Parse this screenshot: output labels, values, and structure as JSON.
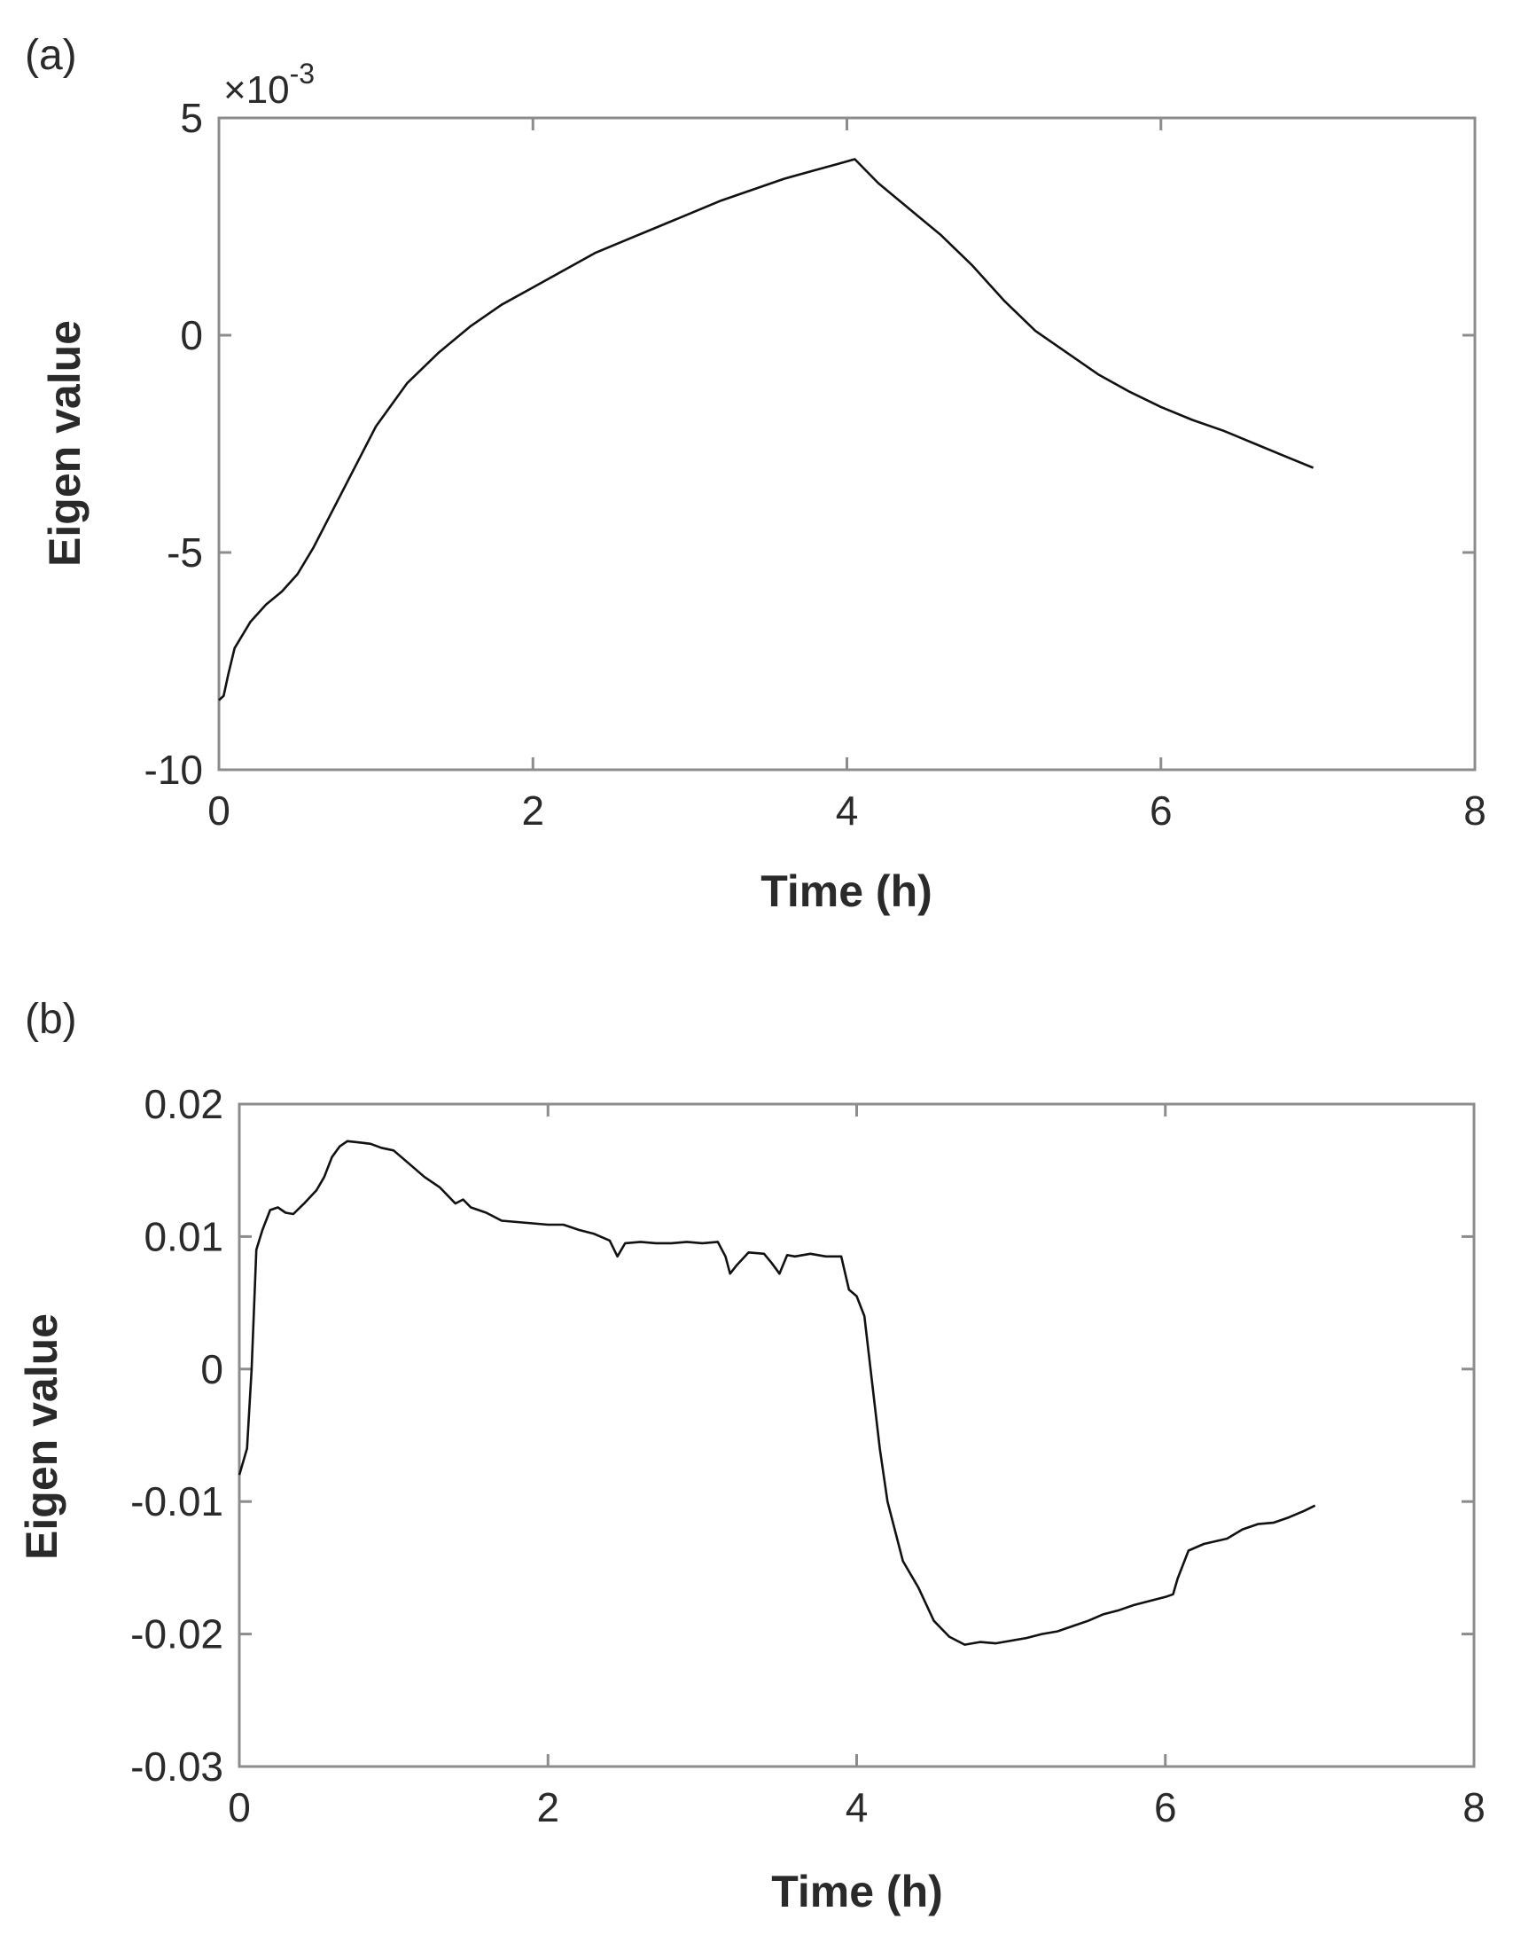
{
  "chart_data": [
    {
      "panel_label": "(a)",
      "type": "line",
      "xlabel": "Time (h)",
      "ylabel": "Eigen value",
      "y_scale_label": "×10",
      "y_scale_exponent": "-3",
      "xlim": [
        0,
        8
      ],
      "ylim": [
        -10,
        5
      ],
      "xticks": [
        0,
        2,
        4,
        6,
        8
      ],
      "xtick_labels": [
        "0",
        "2",
        "4",
        "6",
        "8"
      ],
      "yticks": [
        -10,
        -5,
        0,
        5
      ],
      "ytick_labels": [
        "-10",
        "-5",
        "0",
        "5"
      ],
      "grid": false,
      "series": [
        {
          "color": "#111111",
          "x": [
            0,
            0.03,
            0.06,
            0.1,
            0.15,
            0.2,
            0.3,
            0.4,
            0.5,
            0.6,
            0.7,
            0.8,
            0.9,
            1.0,
            1.2,
            1.4,
            1.6,
            1.8,
            2.0,
            2.2,
            2.4,
            2.6,
            2.8,
            3.0,
            3.2,
            3.4,
            3.6,
            3.8,
            3.95,
            4.05,
            4.2,
            4.4,
            4.6,
            4.8,
            5.0,
            5.2,
            5.4,
            5.6,
            5.8,
            6.0,
            6.2,
            6.4,
            6.6,
            6.8,
            6.97
          ],
          "y": [
            -8.4,
            -8.3,
            -7.8,
            -7.2,
            -6.9,
            -6.6,
            -6.2,
            -5.9,
            -5.5,
            -4.9,
            -4.2,
            -3.5,
            -2.8,
            -2.1,
            -1.1,
            -0.4,
            0.2,
            0.7,
            1.1,
            1.5,
            1.9,
            2.2,
            2.5,
            2.8,
            3.1,
            3.35,
            3.6,
            3.8,
            3.95,
            4.05,
            3.5,
            2.9,
            2.3,
            1.6,
            0.8,
            0.1,
            -0.4,
            -0.9,
            -1.3,
            -1.65,
            -1.95,
            -2.2,
            -2.5,
            -2.8,
            -3.05
          ]
        }
      ]
    },
    {
      "panel_label": "(b)",
      "type": "line",
      "xlabel": "Time (h)",
      "ylabel": "Eigen value",
      "xlim": [
        0,
        8
      ],
      "ylim": [
        -0.03,
        0.02
      ],
      "xticks": [
        0,
        2,
        4,
        6,
        8
      ],
      "xtick_labels": [
        "0",
        "2",
        "4",
        "6",
        "8"
      ],
      "yticks": [
        -0.03,
        -0.02,
        -0.01,
        0,
        0.01,
        0.02
      ],
      "ytick_labels": [
        "-0.03",
        "-0.02",
        "-0.01",
        "0",
        "0.01",
        "0.02"
      ],
      "grid": false,
      "series": [
        {
          "color": "#111111",
          "x": [
            0,
            0.05,
            0.08,
            0.11,
            0.15,
            0.2,
            0.25,
            0.3,
            0.35,
            0.42,
            0.5,
            0.55,
            0.6,
            0.65,
            0.7,
            0.78,
            0.85,
            0.92,
            1.0,
            1.1,
            1.2,
            1.3,
            1.4,
            1.45,
            1.5,
            1.6,
            1.7,
            1.8,
            1.9,
            2.0,
            2.1,
            2.2,
            2.3,
            2.4,
            2.45,
            2.5,
            2.6,
            2.7,
            2.8,
            2.9,
            3.0,
            3.1,
            3.15,
            3.18,
            3.22,
            3.3,
            3.4,
            3.45,
            3.5,
            3.55,
            3.6,
            3.7,
            3.8,
            3.9,
            3.95,
            4.0,
            4.05,
            4.1,
            4.15,
            4.2,
            4.3,
            4.4,
            4.5,
            4.6,
            4.7,
            4.8,
            4.9,
            5.0,
            5.1,
            5.2,
            5.3,
            5.4,
            5.5,
            5.6,
            5.7,
            5.8,
            5.9,
            6.0,
            6.05,
            6.08,
            6.15,
            6.25,
            6.4,
            6.5,
            6.6,
            6.7,
            6.8,
            6.9,
            6.97
          ],
          "y": [
            -0.008,
            -0.006,
            0.0,
            0.009,
            0.0105,
            0.012,
            0.0122,
            0.0118,
            0.0117,
            0.0125,
            0.0135,
            0.0145,
            0.016,
            0.0168,
            0.0172,
            0.0171,
            0.017,
            0.0167,
            0.0165,
            0.0155,
            0.0145,
            0.0137,
            0.0125,
            0.0128,
            0.0122,
            0.0118,
            0.0112,
            0.0111,
            0.011,
            0.0109,
            0.0109,
            0.0105,
            0.0102,
            0.0097,
            0.0085,
            0.0095,
            0.0096,
            0.0095,
            0.0095,
            0.0096,
            0.0095,
            0.0096,
            0.0085,
            0.0072,
            0.0078,
            0.0088,
            0.0087,
            0.008,
            0.0072,
            0.0086,
            0.0085,
            0.0087,
            0.0085,
            0.0085,
            0.006,
            0.0055,
            0.004,
            -0.001,
            -0.006,
            -0.01,
            -0.0145,
            -0.0165,
            -0.019,
            -0.0202,
            -0.0208,
            -0.0206,
            -0.0207,
            -0.0205,
            -0.0203,
            -0.02,
            -0.0198,
            -0.0194,
            -0.019,
            -0.0185,
            -0.0182,
            -0.0178,
            -0.0175,
            -0.0172,
            -0.017,
            -0.0158,
            -0.0137,
            -0.0132,
            -0.0128,
            -0.0121,
            -0.0117,
            -0.0116,
            -0.0112,
            -0.0107,
            -0.0103
          ]
        }
      ]
    }
  ]
}
